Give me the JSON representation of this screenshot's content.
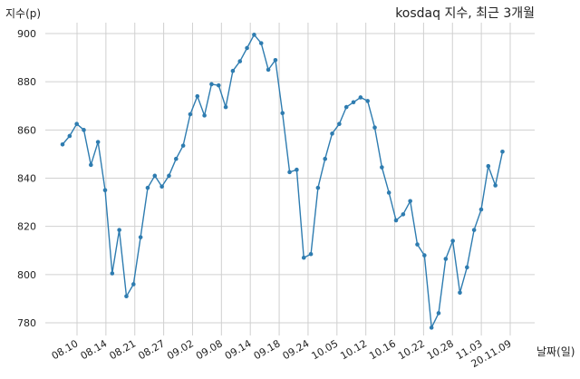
{
  "chart_data": {
    "type": "line",
    "title": "kosdaq 지수, 최근 3개월",
    "xlabel": "날짜(일)",
    "ylabel": "지수(p)",
    "ylim": [
      770,
      905
    ],
    "yticks": [
      780,
      800,
      820,
      840,
      860,
      880,
      900
    ],
    "grid": true,
    "color": "#2e7cb0",
    "x_tick_labels": [
      "08.10",
      "08.14",
      "08.21",
      "08.27",
      "09.02",
      "09.08",
      "09.14",
      "09.18",
      "09.24",
      "10.05",
      "10.12",
      "10.16",
      "10.22",
      "10.28",
      "11.03",
      "20.11.09"
    ],
    "series": [
      {
        "values": [
          854,
          857.5,
          862.5,
          860,
          845.5,
          855,
          835,
          800.5,
          818.5,
          791,
          796,
          815.5,
          836,
          841,
          836.5,
          841,
          848,
          853.5,
          866.5,
          874,
          866,
          879,
          878.5,
          869.5,
          884.5,
          888.5,
          894,
          899.5,
          896,
          885,
          889,
          867,
          842.5,
          843.5,
          807,
          808.5,
          836,
          848,
          858.5,
          862.5,
          869.5,
          871.5,
          873.5,
          872,
          861,
          844.5,
          834,
          822.5,
          825,
          830.5,
          812.5,
          808,
          778,
          784,
          806.5,
          814,
          792.5,
          803,
          818.5,
          827,
          845,
          837,
          851
        ]
      }
    ]
  }
}
